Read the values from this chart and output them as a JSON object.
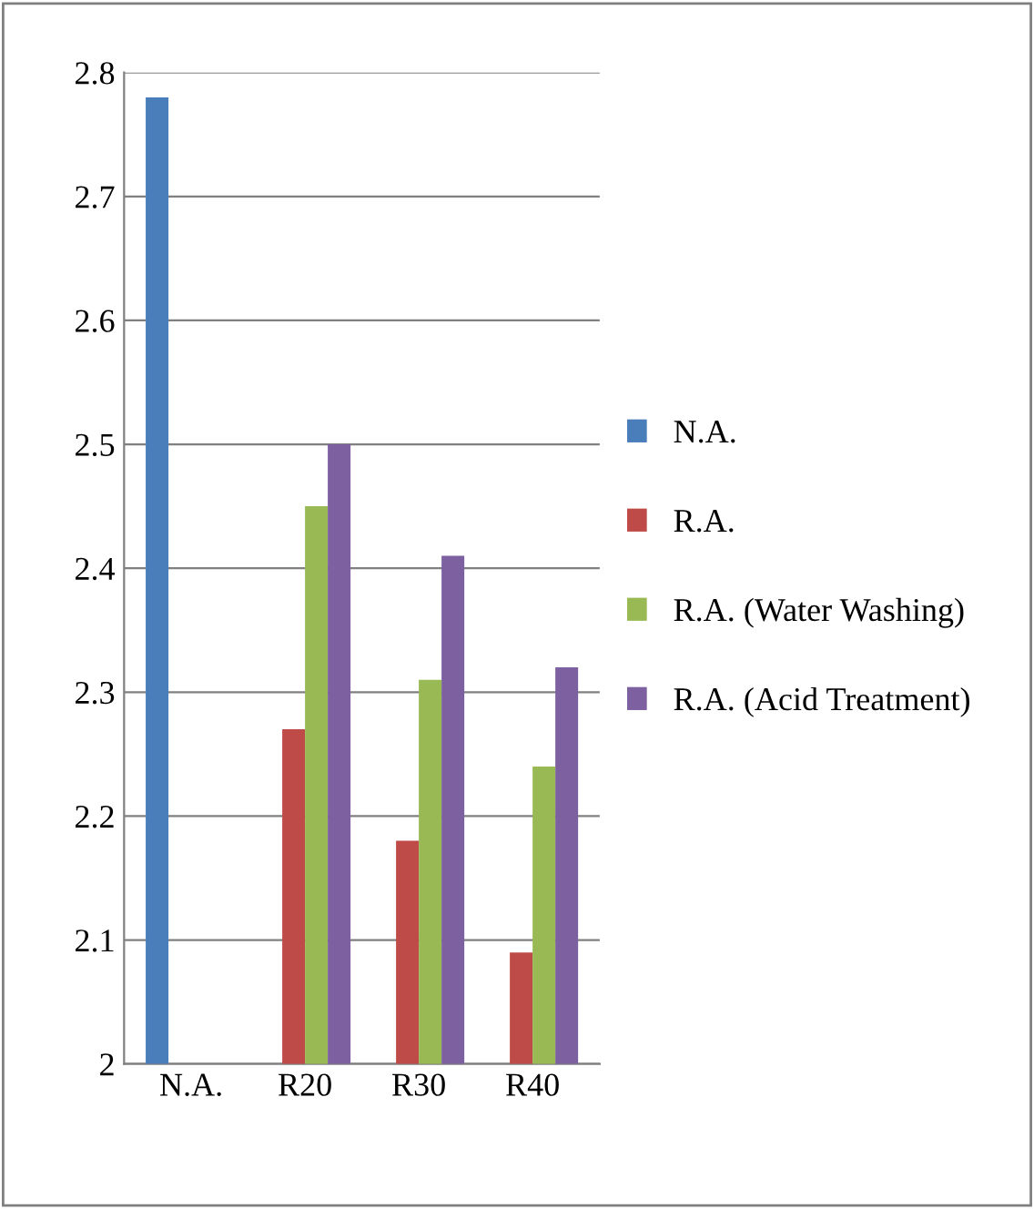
{
  "chart_data": {
    "type": "bar",
    "categories": [
      "N.A.",
      "R20",
      "R30",
      "R40"
    ],
    "series": [
      {
        "name": "N.A.",
        "color": "#4a7ebb",
        "values": [
          2.78,
          null,
          null,
          null
        ]
      },
      {
        "name": "R.A.",
        "color": "#be4b48",
        "values": [
          null,
          2.27,
          2.18,
          2.09
        ]
      },
      {
        "name": "R.A. (Water Washing)",
        "color": "#98b954",
        "values": [
          null,
          2.45,
          2.31,
          2.24
        ]
      },
      {
        "name": "R.A. (Acid Treatment)",
        "color": "#7d60a0",
        "values": [
          null,
          2.5,
          2.41,
          2.32
        ]
      }
    ],
    "ylim": [
      2,
      2.8
    ],
    "yticks": [
      2,
      2.1,
      2.2,
      2.3,
      2.4,
      2.5,
      2.6,
      2.7,
      2.8
    ],
    "grid": "y",
    "legend": "right"
  }
}
